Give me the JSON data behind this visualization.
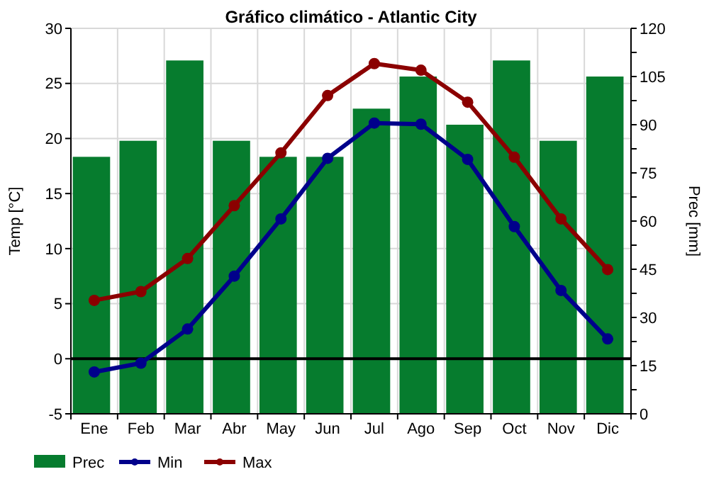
{
  "chart_data": {
    "type": "bar",
    "title": "Gráfico climático - Atlantic City",
    "ylabel": "Temp [°C]",
    "y2label": "Prec [mm]",
    "categories": [
      "Ene",
      "Feb",
      "Mar",
      "Abr",
      "May",
      "Jun",
      "Jul",
      "Ago",
      "Sep",
      "Oct",
      "Nov",
      "Dic"
    ],
    "series": [
      {
        "name": "Prec",
        "axis": "y2",
        "color": "#067c2e",
        "values": [
          80,
          85,
          110,
          85,
          80,
          80,
          95,
          105,
          90,
          110,
          85,
          105
        ]
      },
      {
        "name": "Min",
        "type": "line",
        "color": "#00008b",
        "values": [
          -1.2,
          -0.4,
          2.7,
          7.5,
          12.7,
          18.2,
          21.4,
          21.3,
          18.1,
          12.0,
          6.2,
          1.8
        ]
      },
      {
        "name": "Max",
        "type": "line",
        "color": "#8b0000",
        "values": [
          5.3,
          6.1,
          9.1,
          13.9,
          18.7,
          23.9,
          26.8,
          26.2,
          23.3,
          18.3,
          12.7,
          8.1
        ]
      }
    ],
    "ylim": [
      -5,
      30
    ],
    "yticks": [
      -5,
      0,
      5,
      10,
      15,
      20,
      25,
      30
    ],
    "y2lim": [
      0,
      120
    ],
    "y2ticks": [
      0,
      {
        "value": 7.5,
        "label": null
      },
      15,
      {
        "value": 22.5,
        "label": null
      },
      30,
      {
        "value": 37.5,
        "label": null
      },
      45,
      {
        "value": 52.5,
        "label": null
      },
      60,
      {
        "value": 67.5,
        "label": null
      },
      75,
      {
        "value": 82.5,
        "label": null
      },
      90,
      {
        "value": 97.5,
        "label": null
      },
      105,
      {
        "value": 112.5,
        "label": null
      },
      120
    ],
    "ref_lines": [
      {
        "axis": "y",
        "value": 0,
        "color": "#000000"
      }
    ],
    "grid": true,
    "legend": "bottom",
    "marker": "circle"
  }
}
